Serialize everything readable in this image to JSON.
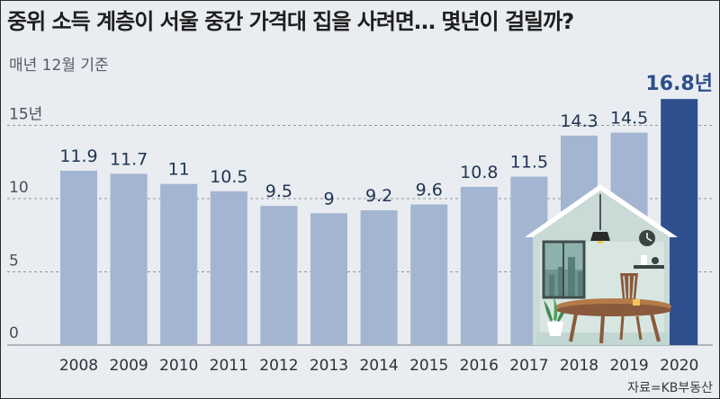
{
  "title": "중위 소득 계층이 서울 중간 가격대 집을 사려면… 몇년이 걸릴까?",
  "subtitle": "매년 12월 기준",
  "source": "자료=KB부동산",
  "colors": {
    "bar": "#a3b5d1",
    "bar_highlight": "#2f4f8f",
    "grid": "#8f959c",
    "background": "#e9ecf0"
  },
  "chart_data": {
    "type": "bar",
    "categories": [
      "2008",
      "2009",
      "2010",
      "2011",
      "2012",
      "2013",
      "2014",
      "2015",
      "2016",
      "2017",
      "2018",
      "2019",
      "2020"
    ],
    "values": [
      11.9,
      11.7,
      11,
      10.5,
      9.5,
      9,
      9.2,
      9.6,
      10.8,
      11.5,
      14.3,
      14.5,
      16.8
    ],
    "data_labels": [
      "11.9",
      "11.7",
      "11",
      "10.5",
      "9.5",
      "9",
      "9.2",
      "9.6",
      "10.8",
      "11.5",
      "14.3",
      "14.5",
      "16.8년"
    ],
    "highlight_index": 12,
    "y_ticks": [
      0,
      5,
      10,
      15
    ],
    "y_tick_labels": [
      "0",
      "5",
      "10",
      "15년"
    ],
    "ylim": [
      0,
      17
    ],
    "grid": true,
    "decoration": "house-illustration"
  }
}
